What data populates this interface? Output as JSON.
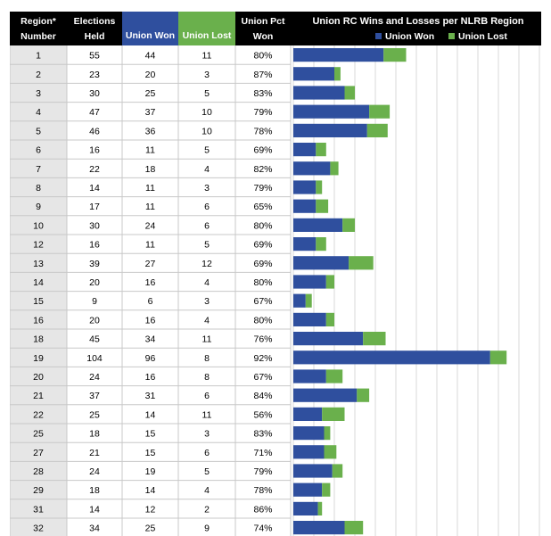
{
  "table": {
    "headers": [
      {
        "line1": "Region*",
        "line2": "Number"
      },
      {
        "line1": "Elections",
        "line2": "Held"
      },
      {
        "line1": "Union Won",
        "line2": ""
      },
      {
        "line1": "Union Lost",
        "line2": ""
      },
      {
        "line1": "Union Pct",
        "line2": "Won"
      }
    ],
    "rows": [
      [
        "1",
        "55",
        "44",
        "11",
        "80%"
      ],
      [
        "2",
        "23",
        "20",
        "3",
        "87%"
      ],
      [
        "3",
        "30",
        "25",
        "5",
        "83%"
      ],
      [
        "4",
        "47",
        "37",
        "10",
        "79%"
      ],
      [
        "5",
        "46",
        "36",
        "10",
        "78%"
      ],
      [
        "6",
        "16",
        "11",
        "5",
        "69%"
      ],
      [
        "7",
        "22",
        "18",
        "4",
        "82%"
      ],
      [
        "8",
        "14",
        "11",
        "3",
        "79%"
      ],
      [
        "9",
        "17",
        "11",
        "6",
        "65%"
      ],
      [
        "10",
        "30",
        "24",
        "6",
        "80%"
      ],
      [
        "12",
        "16",
        "11",
        "5",
        "69%"
      ],
      [
        "13",
        "39",
        "27",
        "12",
        "69%"
      ],
      [
        "14",
        "20",
        "16",
        "4",
        "80%"
      ],
      [
        "15",
        "9",
        "6",
        "3",
        "67%"
      ],
      [
        "16",
        "20",
        "16",
        "4",
        "80%"
      ],
      [
        "18",
        "45",
        "34",
        "11",
        "76%"
      ],
      [
        "19",
        "104",
        "96",
        "8",
        "92%"
      ],
      [
        "20",
        "24",
        "16",
        "8",
        "67%"
      ],
      [
        "21",
        "37",
        "31",
        "6",
        "84%"
      ],
      [
        "22",
        "25",
        "14",
        "11",
        "56%"
      ],
      [
        "25",
        "18",
        "15",
        "3",
        "83%"
      ],
      [
        "27",
        "21",
        "15",
        "6",
        "71%"
      ],
      [
        "28",
        "24",
        "19",
        "5",
        "79%"
      ],
      [
        "29",
        "18",
        "14",
        "4",
        "78%"
      ],
      [
        "31",
        "14",
        "12",
        "2",
        "86%"
      ],
      [
        "32",
        "34",
        "25",
        "9",
        "74%"
      ]
    ]
  },
  "colors": {
    "header_bg": "#000000",
    "won": "#2f4f9e",
    "lost": "#6ab04c",
    "region_col_bg": "#e6e6e6",
    "grid": "#c8c8c8",
    "gridline": "#d9d9d9"
  },
  "chart_data": {
    "type": "bar",
    "stacked": true,
    "orientation": "horizontal",
    "title": "Union RC Wins and Losses per NLRB Region",
    "legend_position": "top-right",
    "categories": [
      "1",
      "2",
      "3",
      "4",
      "5",
      "6",
      "7",
      "8",
      "9",
      "10",
      "12",
      "13",
      "14",
      "15",
      "16",
      "18",
      "19",
      "20",
      "21",
      "22",
      "25",
      "27",
      "28",
      "29",
      "31",
      "32"
    ],
    "series": [
      {
        "name": "Union Won",
        "values": [
          44,
          20,
          25,
          37,
          36,
          11,
          18,
          11,
          11,
          24,
          11,
          27,
          16,
          6,
          16,
          34,
          96,
          16,
          31,
          14,
          15,
          15,
          19,
          14,
          12,
          25
        ]
      },
      {
        "name": "Union Lost",
        "values": [
          11,
          3,
          5,
          10,
          10,
          5,
          4,
          3,
          6,
          6,
          5,
          12,
          4,
          3,
          4,
          11,
          8,
          8,
          6,
          11,
          3,
          6,
          5,
          4,
          2,
          9
        ]
      }
    ],
    "xlim": [
      0,
      120
    ],
    "grid": true
  }
}
